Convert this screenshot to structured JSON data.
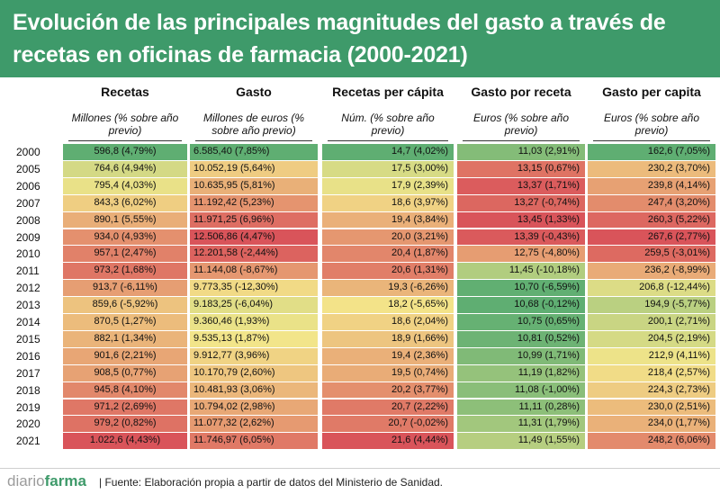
{
  "title": "Evolución de las principales magnitudes del gasto a través de recetas en oficinas de farmacia (2000-2021)",
  "footer": {
    "brand_a": "diario",
    "brand_b": "farma",
    "source": "| Fuente:  Elaboración propia a partir de datos del Ministerio de Sanidad."
  },
  "chart_data": {
    "type": "table",
    "title": "Evolución de las principales magnitudes del gasto a través de recetas en oficinas de farmacia (2000-2021)",
    "colors": {
      "low": "#5fae72",
      "mid": "#f3e58a",
      "high": "#d9545a"
    },
    "years": [
      "2000",
      "2005",
      "2006",
      "2007",
      "2008",
      "2009",
      "2010",
      "2011",
      "2012",
      "2013",
      "2014",
      "2015",
      "2016",
      "2017",
      "2018",
      "2019",
      "2020",
      "2021"
    ],
    "columns": [
      {
        "name": "Recetas",
        "unit": "Millones (% sobre año previo)",
        "align": "c",
        "values": [
          596.8,
          764.6,
          795.4,
          843.3,
          890.1,
          934.0,
          957.1,
          973.2,
          913.7,
          859.6,
          870.5,
          882.1,
          901.6,
          908.5,
          945.8,
          971.2,
          979.2,
          1022.6
        ],
        "labels": [
          "596,8 (4,79%)",
          "764,6 (4,94%)",
          "795,4 (4,03%)",
          "843,3 (6,02%)",
          "890,1 (5,55%)",
          "934,0 (4,93%)",
          "957,1 (2,47%)",
          "973,2 (1,68%)",
          "913,7 (-6,11%)",
          "859,6 (-5,92%)",
          "870,5 (1,27%)",
          "882,1 (1,34%)",
          "901,6 (2,21%)",
          "908,5 (0,77%)",
          "945,8 (4,10%)",
          "971,2 (2,69%)",
          "979,2 (0,82%)",
          "1.022,6 (4,43%)"
        ]
      },
      {
        "name": "Gasto",
        "unit": "Millones de euros (% sobre año previo)",
        "align": "l",
        "values": [
          6585.4,
          10052.19,
          10635.95,
          11192.42,
          11971.25,
          12506.86,
          12201.58,
          11144.08,
          9773.35,
          9183.25,
          9360.46,
          9535.13,
          9912.77,
          10170.79,
          10481.93,
          10794.02,
          11077.32,
          11746.97
        ],
        "labels": [
          "6.585,40 (7,85%)",
          "10.052,19 (5,64%)",
          "10.635,95 (5,81%)",
          "11.192,42 (5,23%)",
          "11.971,25 (6,96%)",
          "12.506,86 (4,47%)",
          "12.201,58 (-2,44%)",
          "11.144,08 (-8,67%)",
          "9.773,35 (-12,30%)",
          "9.183,25 (-6,04%)",
          "9.360,46 (1,93%)",
          "9.535,13 (1,87%)",
          "9.912,77 (3,96%)",
          "10.170,79 (2,60%)",
          "10.481,93 (3,06%)",
          "10.794,02 (2,98%)",
          "11.077,32 (2,62%)",
          "11.746,97 (6,05%)"
        ]
      },
      {
        "name": "Recetas per cápita",
        "unit": "Núm. (% sobre año previo)",
        "align": "r",
        "values": [
          14.7,
          17.5,
          17.9,
          18.6,
          19.4,
          20.0,
          20.4,
          20.6,
          19.3,
          18.2,
          18.6,
          18.9,
          19.4,
          19.5,
          20.2,
          20.7,
          20.7,
          21.6
        ],
        "labels": [
          "14,7 (4,02%)",
          "17,5 (3,00%)",
          "17,9 (2,39%)",
          "18,6 (3,97%)",
          "19,4 (3,84%)",
          "20,0 (3,21%)",
          "20,4 (1,87%)",
          "20,6 (1,31%)",
          "19,3 (-6,26%)",
          "18,2 (-5,65%)",
          "18,6 (2,04%)",
          "18,9 (1,66%)",
          "19,4 (2,36%)",
          "19,5 (0,74%)",
          "20,2 (3,77%)",
          "20,7 (2,22%)",
          "20,7 (-0,02%)",
          "21,6 (4,44%)"
        ]
      },
      {
        "name": "Gasto por receta",
        "unit": "Euros (% sobre año previo)",
        "align": "r",
        "values": [
          11.03,
          13.15,
          13.37,
          13.27,
          13.45,
          13.39,
          12.75,
          11.45,
          10.7,
          10.68,
          10.75,
          10.81,
          10.99,
          11.19,
          11.08,
          11.11,
          11.31,
          11.49
        ],
        "labels": [
          "11,03 (2,91%)",
          "13,15 (0,67%)",
          "13,37 (1,71%)",
          "13,27 (-0,74%)",
          "13,45 (1,33%)",
          "13,39 (-0,43%)",
          "12,75 (-4,80%)",
          "11,45 (-10,18%)",
          "10,70 (-6,59%)",
          "10,68 (-0,12%)",
          "10,75 (0,65%)",
          "10,81 (0,52%)",
          "10,99 (1,71%)",
          "11,19 (1,82%)",
          "11,08 (-1,00%)",
          "11,11 (0,28%)",
          "11,31 (1,79%)",
          "11,49 (1,55%)"
        ]
      },
      {
        "name": "Gasto per capita",
        "unit": "Euros (% sobre año previo)",
        "align": "r",
        "values": [
          162.6,
          230.2,
          239.8,
          247.4,
          260.3,
          267.6,
          259.5,
          236.2,
          206.8,
          194.9,
          200.1,
          204.5,
          212.9,
          218.4,
          224.3,
          230.0,
          234.0,
          248.2
        ],
        "labels": [
          "162,6 (7,05%)",
          "230,2 (3,70%)",
          "239,8 (4,14%)",
          "247,4 (3,20%)",
          "260,3 (5,22%)",
          "267,6 (2,77%)",
          "259,5 (-3,01%)",
          "236,2 (-8,99%)",
          "206,8 (-12,44%)",
          "194,9 (-5,77%)",
          "200,1 (2,71%)",
          "204,5 (2,19%)",
          "212,9 (4,11%)",
          "218,4 (2,57%)",
          "224,3 (2,73%)",
          "230,0 (2,51%)",
          "234,0 (1,77%)",
          "248,2 (6,06%)"
        ]
      }
    ]
  }
}
